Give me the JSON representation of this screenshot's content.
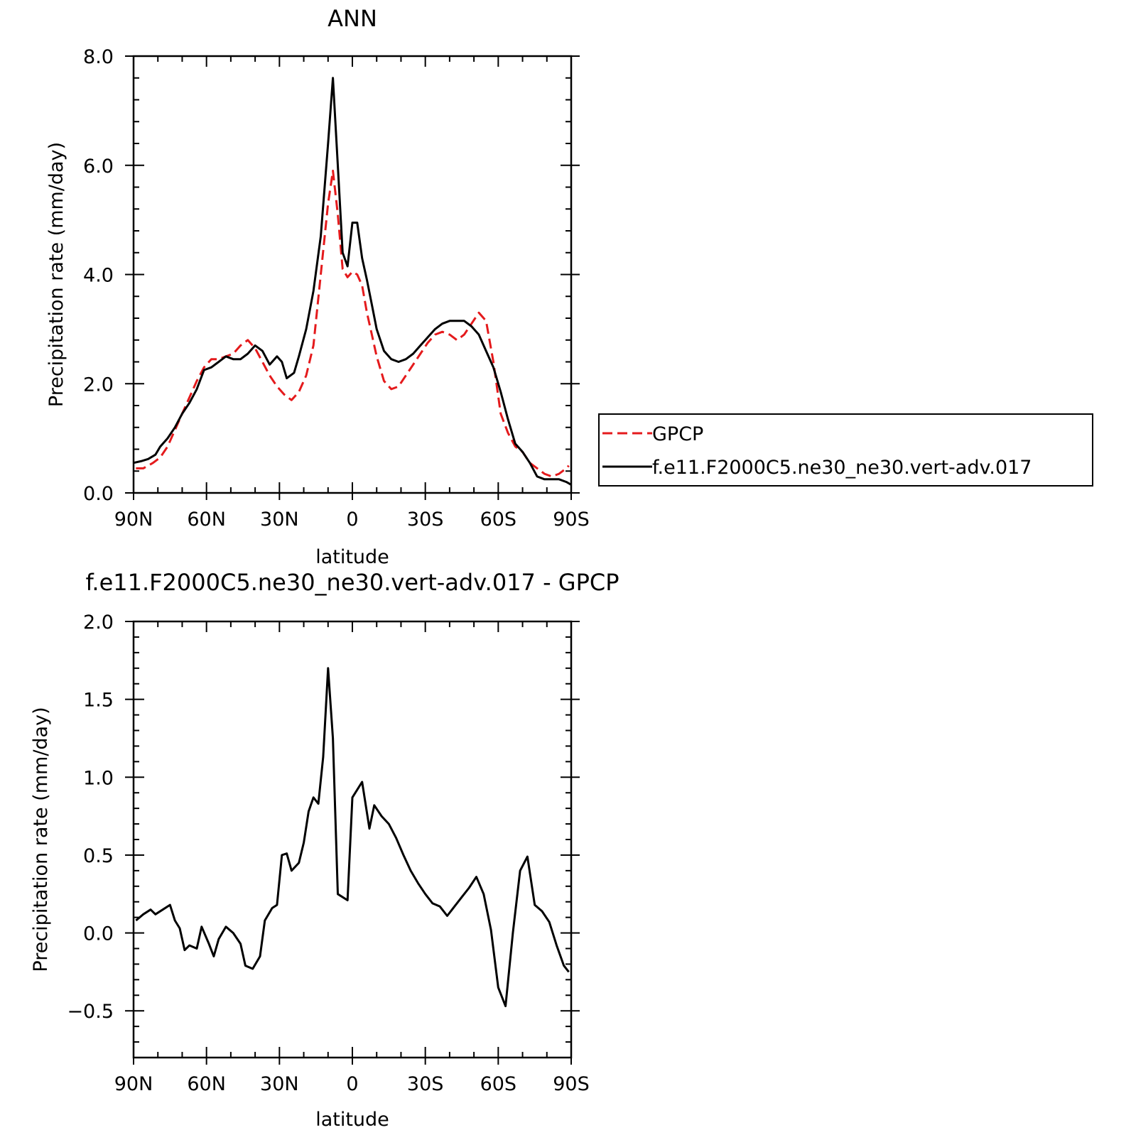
{
  "chart_data": [
    {
      "type": "line",
      "title": "ANN",
      "xlabel": "latitude",
      "ylabel": "Precipitation rate (mm/day)",
      "xlim": [
        90,
        -90
      ],
      "ylim": [
        0,
        8
      ],
      "x_ticks": [
        {
          "value": 90,
          "label": "90N"
        },
        {
          "value": 60,
          "label": "60N"
        },
        {
          "value": 30,
          "label": "30N"
        },
        {
          "value": 0,
          "label": "0"
        },
        {
          "value": -30,
          "label": "30S"
        },
        {
          "value": -60,
          "label": "60S"
        },
        {
          "value": -90,
          "label": "90S"
        }
      ],
      "y_ticks": [
        {
          "value": 0,
          "label": "0.0"
        },
        {
          "value": 2,
          "label": "2.0"
        },
        {
          "value": 4,
          "label": "4.0"
        },
        {
          "value": 6,
          "label": "6.0"
        },
        {
          "value": 8,
          "label": "8.0"
        }
      ],
      "legend": {
        "placement": "right",
        "entries": [
          "GPCP",
          "f.e11.F2000C5.ne30_ne30.vert-adv.017"
        ]
      },
      "series": [
        {
          "name": "GPCP",
          "color": "#e41a1c",
          "dash": "dashed",
          "x": [
            89,
            86,
            82,
            79,
            76,
            73,
            70,
            67,
            64,
            61,
            58,
            55,
            52,
            49,
            46,
            43,
            40,
            37,
            34,
            31,
            28,
            25,
            22,
            19,
            16,
            13,
            10,
            8,
            6,
            4,
            2,
            0,
            -2,
            -4,
            -6,
            -8,
            -10,
            -13,
            -16,
            -19,
            -22,
            -25,
            -28,
            -31,
            -34,
            -37,
            -40,
            -43,
            -46,
            -49,
            -52,
            -55,
            -58,
            -61,
            -64,
            -67,
            -70,
            -73,
            -76,
            -79,
            -82,
            -85,
            -88,
            -89
          ],
          "values": [
            0.45,
            0.45,
            0.55,
            0.65,
            0.85,
            1.15,
            1.45,
            1.75,
            2.05,
            2.3,
            2.45,
            2.45,
            2.5,
            2.55,
            2.7,
            2.8,
            2.65,
            2.4,
            2.15,
            1.95,
            1.8,
            1.7,
            1.85,
            2.15,
            2.7,
            4.0,
            5.3,
            5.9,
            5.1,
            4.1,
            3.95,
            4.05,
            4.0,
            3.8,
            3.3,
            2.9,
            2.5,
            2.05,
            1.9,
            1.95,
            2.15,
            2.35,
            2.55,
            2.75,
            2.9,
            2.95,
            2.9,
            2.8,
            2.9,
            3.1,
            3.3,
            3.15,
            2.4,
            1.45,
            1.1,
            0.85,
            0.75,
            0.55,
            0.45,
            0.35,
            0.3,
            0.35,
            0.45,
            0.5
          ]
        },
        {
          "name": "f.e11.F2000C5.ne30_ne30.vert-adv.017",
          "color": "#000000",
          "dash": "solid",
          "x": [
            90,
            87,
            84,
            81,
            79,
            76,
            73,
            70,
            67,
            64,
            61,
            58,
            55,
            52,
            49,
            46,
            43,
            40,
            37,
            34,
            31,
            29,
            27,
            24,
            22,
            19,
            16,
            13,
            10,
            8,
            6,
            4,
            2,
            0,
            -2,
            -4,
            -6,
            -8,
            -10,
            -13,
            -16,
            -19,
            -22,
            -25,
            -28,
            -31,
            -34,
            -37,
            -40,
            -43,
            -46,
            -49,
            -52,
            -55,
            -58,
            -61,
            -64,
            -67,
            -70,
            -73,
            -76,
            -79,
            -82,
            -85,
            -88,
            -90
          ],
          "values": [
            0.55,
            0.58,
            0.62,
            0.7,
            0.85,
            1.0,
            1.2,
            1.45,
            1.65,
            1.9,
            2.25,
            2.3,
            2.4,
            2.5,
            2.45,
            2.45,
            2.55,
            2.7,
            2.6,
            2.35,
            2.5,
            2.4,
            2.1,
            2.2,
            2.5,
            3.0,
            3.7,
            4.7,
            6.4,
            7.6,
            6.0,
            4.4,
            4.15,
            4.95,
            4.95,
            4.3,
            3.9,
            3.45,
            3.0,
            2.6,
            2.45,
            2.4,
            2.45,
            2.55,
            2.7,
            2.85,
            3.0,
            3.1,
            3.15,
            3.15,
            3.15,
            3.05,
            2.9,
            2.6,
            2.3,
            1.85,
            1.35,
            0.9,
            0.75,
            0.55,
            0.3,
            0.25,
            0.25,
            0.25,
            0.2,
            0.15
          ]
        }
      ]
    },
    {
      "type": "line",
      "title": "f.e11.F2000C5.ne30_ne30.vert-adv.017 - GPCP",
      "xlabel": "latitude",
      "ylabel": "Precipitation rate (mm/day)",
      "xlim": [
        90,
        -90
      ],
      "ylim": [
        -0.8,
        2.0
      ],
      "x_ticks": [
        {
          "value": 90,
          "label": "90N"
        },
        {
          "value": 60,
          "label": "60N"
        },
        {
          "value": 30,
          "label": "30N"
        },
        {
          "value": 0,
          "label": "0"
        },
        {
          "value": -30,
          "label": "30S"
        },
        {
          "value": -60,
          "label": "60S"
        },
        {
          "value": -90,
          "label": "90S"
        }
      ],
      "y_ticks": [
        {
          "value": -0.5,
          "label": "−0.5"
        },
        {
          "value": 0,
          "label": "0.0"
        },
        {
          "value": 0.5,
          "label": "0.5"
        },
        {
          "value": 1.0,
          "label": "1.0"
        },
        {
          "value": 1.5,
          "label": "1.5"
        },
        {
          "value": 2.0,
          "label": "2.0"
        }
      ],
      "series": [
        {
          "color": "#000000",
          "dash": "solid",
          "x": [
            89,
            86,
            83,
            81,
            78,
            75,
            73,
            71,
            69,
            67,
            64,
            62,
            59,
            57,
            55,
            52,
            49,
            46,
            44,
            41,
            38,
            36,
            33,
            31,
            29,
            27,
            25,
            22,
            20,
            18,
            16,
            14,
            12,
            10,
            8,
            6,
            2,
            0,
            -4,
            -7,
            -9,
            -12,
            -15,
            -18,
            -21,
            -24,
            -27,
            -30,
            -33,
            -36,
            -39,
            -42,
            -45,
            -48,
            -51,
            -54,
            -57,
            -60,
            -63,
            -66,
            -69,
            -72,
            -75,
            -78,
            -81,
            -84,
            -87,
            -89
          ],
          "values": [
            0.08,
            0.12,
            0.15,
            0.12,
            0.15,
            0.18,
            0.08,
            0.03,
            -0.11,
            -0.08,
            -0.1,
            0.04,
            -0.07,
            -0.15,
            -0.04,
            0.04,
            0.0,
            -0.07,
            -0.21,
            -0.23,
            -0.15,
            0.08,
            0.16,
            0.18,
            0.5,
            0.51,
            0.4,
            0.45,
            0.58,
            0.78,
            0.87,
            0.83,
            1.13,
            1.7,
            1.25,
            0.25,
            0.21,
            0.87,
            0.97,
            0.67,
            0.82,
            0.75,
            0.7,
            0.61,
            0.5,
            0.4,
            0.32,
            0.25,
            0.19,
            0.17,
            0.11,
            0.17,
            0.23,
            0.29,
            0.36,
            0.25,
            0.02,
            -0.35,
            -0.47,
            0.0,
            0.4,
            0.49,
            0.18,
            0.14,
            0.07,
            -0.08,
            -0.21,
            -0.25
          ]
        }
      ]
    }
  ]
}
